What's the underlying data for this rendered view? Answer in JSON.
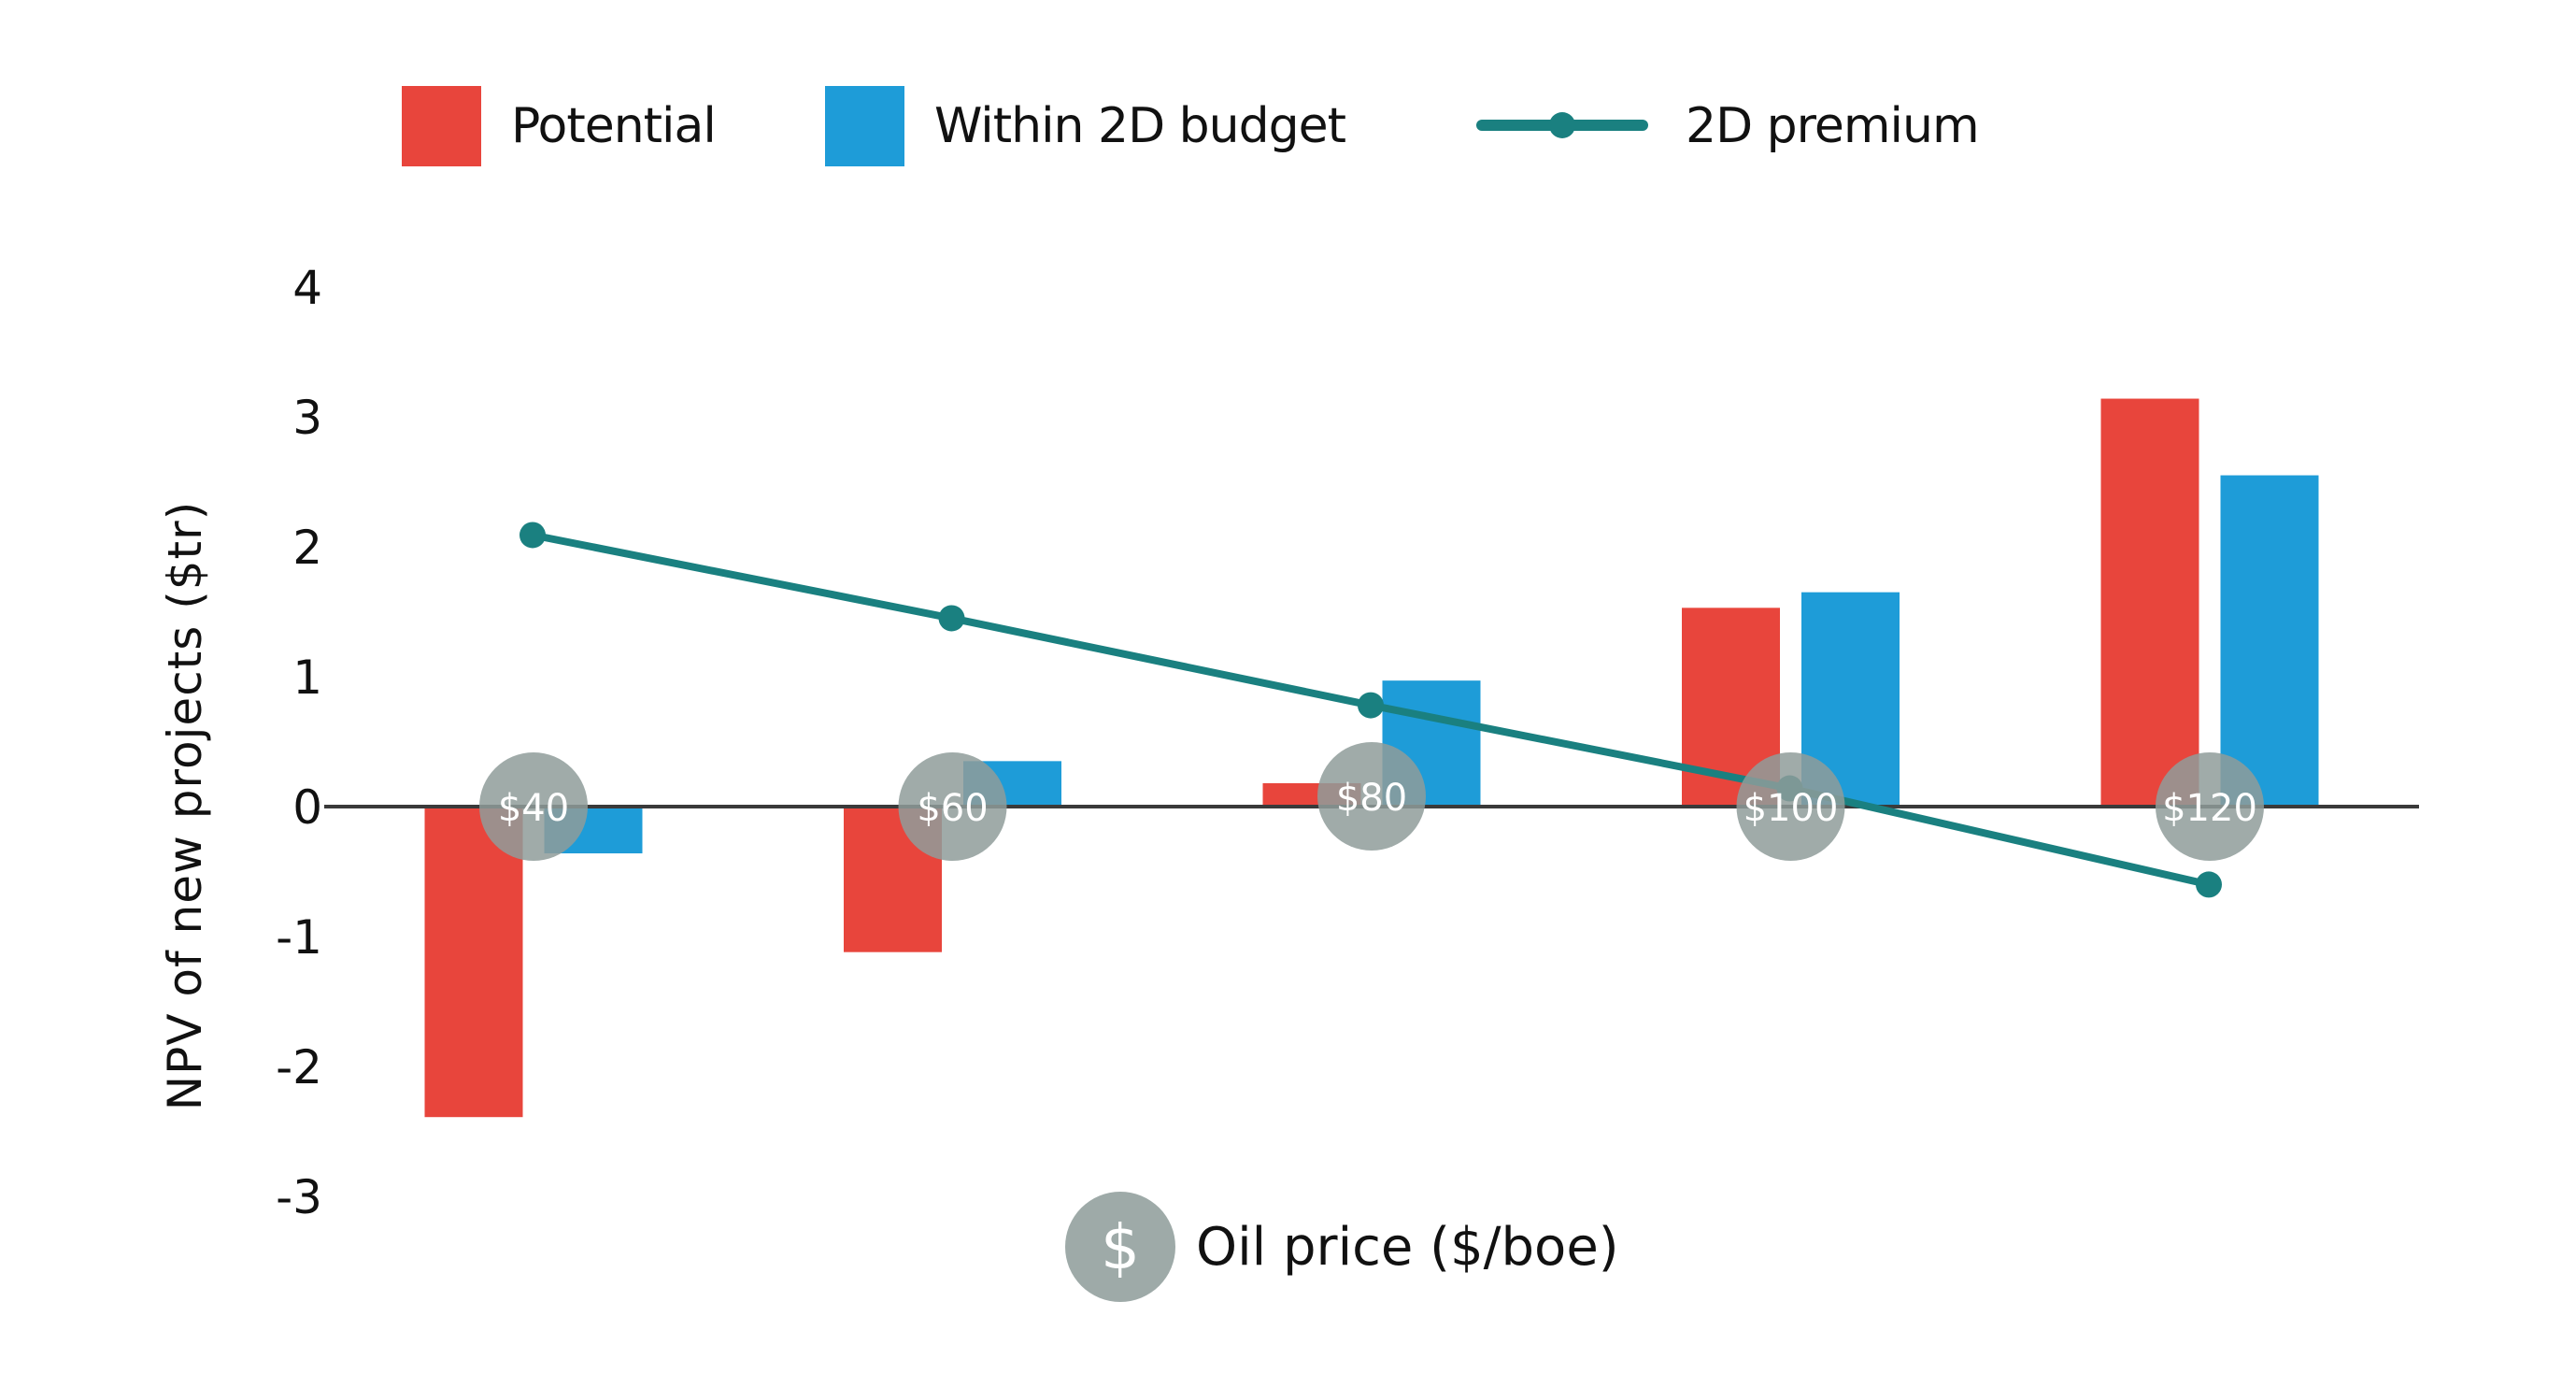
{
  "colors": {
    "potential": "#e8453c",
    "within": "#1e9cd8",
    "premium": "#1a8080",
    "axis": "#3a3a3a",
    "price_circle": "#8f9c9a",
    "price_circle_text": "#ffffff",
    "tick_text": "#111111"
  },
  "legend": {
    "items": [
      {
        "label": "Potential",
        "type": "box",
        "color": "#e8453c"
      },
      {
        "label": "Within 2D budget",
        "type": "box",
        "color": "#1e9cd8"
      },
      {
        "label": "2D premium",
        "type": "line",
        "color": "#1a8080"
      }
    ]
  },
  "axis_icon": "dollar-icon",
  "axis_icon_glyph": "$",
  "chart_data": {
    "type": "bar",
    "title": "",
    "xlabel": "Oil price ($/boe)",
    "ylabel": "NPV of new projects ($tr)",
    "categories": [
      "$40",
      "$60",
      "$80",
      "$100",
      "$120"
    ],
    "ylim": [
      -3,
      4
    ],
    "yticks": [
      4,
      3,
      2,
      1,
      0,
      -1,
      -2,
      -3
    ],
    "grid": false,
    "legend_position": "top",
    "series": [
      {
        "name": "Potential",
        "type": "bar",
        "values": [
          -2.39,
          -1.12,
          0.18,
          1.53,
          3.14
        ]
      },
      {
        "name": "Within 2D budget",
        "type": "bar",
        "values": [
          -0.36,
          0.35,
          0.97,
          1.65,
          2.55
        ]
      },
      {
        "name": "2D premium",
        "type": "line",
        "values": [
          2.09,
          1.45,
          0.78,
          0.14,
          -0.6
        ]
      }
    ],
    "category_markers": "gray circles centered on the zero line at each category"
  }
}
